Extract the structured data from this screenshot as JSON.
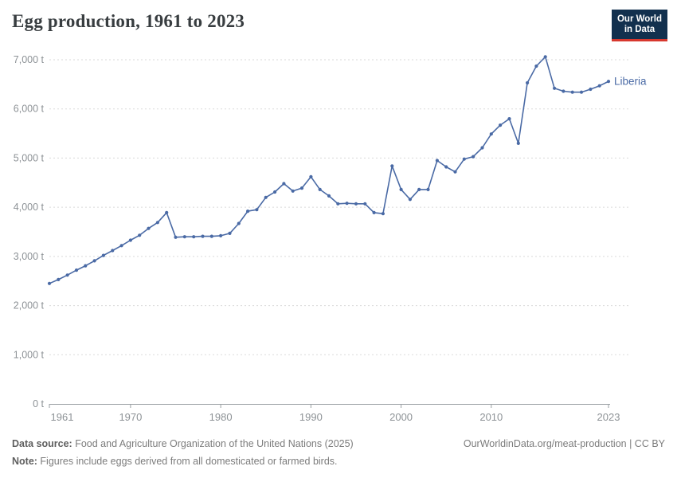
{
  "header": {
    "title": "Egg production, 1961 to 2023",
    "logo": {
      "line1": "Our World",
      "line2": "in Data",
      "bg_color": "#12304e",
      "accent_color": "#d7382e"
    }
  },
  "chart_data": {
    "type": "line",
    "title": "Egg production, 1961 to 2023",
    "unit": "t",
    "entity_label": "Liberia",
    "line_color": "#4a6aa5",
    "grid": "horizontal-dashed",
    "legend_position": "end-of-line",
    "ylim": [
      0,
      7000
    ],
    "yticks": [
      0,
      1000,
      2000,
      3000,
      4000,
      5000,
      6000,
      7000
    ],
    "ytick_labels": [
      "0 t",
      "1,000 t",
      "2,000 t",
      "3,000 t",
      "4,000 t",
      "5,000 t",
      "6,000 t",
      "7,000 t"
    ],
    "xticks": [
      1961,
      1970,
      1980,
      1990,
      2000,
      2010,
      2023
    ],
    "years": [
      1961,
      1962,
      1963,
      1964,
      1965,
      1966,
      1967,
      1968,
      1969,
      1970,
      1971,
      1972,
      1973,
      1974,
      1975,
      1976,
      1977,
      1978,
      1979,
      1980,
      1981,
      1982,
      1983,
      1984,
      1985,
      1986,
      1987,
      1988,
      1989,
      1990,
      1991,
      1992,
      1993,
      1994,
      1995,
      1996,
      1997,
      1998,
      1999,
      2000,
      2001,
      2002,
      2003,
      2004,
      2005,
      2006,
      2007,
      2008,
      2009,
      2010,
      2011,
      2012,
      2013,
      2014,
      2015,
      2016,
      2017,
      2018,
      2019,
      2020,
      2021,
      2022,
      2023
    ],
    "series": [
      {
        "name": "Liberia",
        "values": [
          2450,
          2530,
          2620,
          2720,
          2810,
          2910,
          3020,
          3120,
          3220,
          3330,
          3430,
          3570,
          3690,
          3890,
          3390,
          3400,
          3400,
          3410,
          3410,
          3420,
          3470,
          3670,
          3920,
          3950,
          4200,
          4310,
          4480,
          4330,
          4390,
          4620,
          4360,
          4230,
          4070,
          4080,
          4070,
          4070,
          3890,
          3870,
          4840,
          4360,
          4160,
          4360,
          4360,
          4950,
          4820,
          4720,
          4980,
          5030,
          5210,
          5490,
          5670,
          5800,
          5300,
          6530,
          6870,
          7060,
          6420,
          6360,
          6340,
          6340,
          6400,
          6470,
          6560
        ]
      }
    ]
  },
  "footer": {
    "source_label": "Data source:",
    "source_text": " Food and Agriculture Organization of the United Nations (2025)",
    "note_label": "Note:",
    "note_text": " Figures include eggs derived from all domesticated or farmed birds.",
    "attribution": "OurWorldinData.org/meat-production | CC BY"
  }
}
